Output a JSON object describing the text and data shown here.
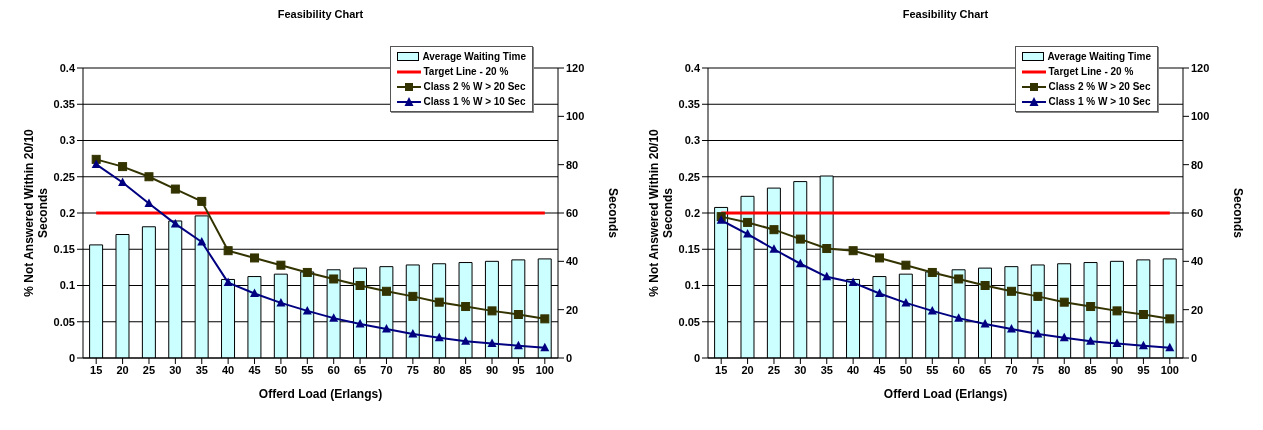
{
  "chart_data": [
    {
      "type": "bar",
      "title": "Feasibility Chart",
      "xlabel": "Offerd Load (Erlangs)",
      "ylabel": "% Not Answered Within 20/10 Seconds",
      "y2label": "Seconds",
      "categories": [
        "15",
        "20",
        "25",
        "30",
        "35",
        "40",
        "45",
        "50",
        "55",
        "60",
        "65",
        "70",
        "75",
        "80",
        "85",
        "90",
        "95",
        "100"
      ],
      "series": [
        {
          "name": "Average Waiting Time",
          "axis": "y2",
          "color": "#ccffff",
          "values": [
            46.8,
            51.1,
            54.3,
            56.7,
            58.8,
            32.5,
            33.7,
            34.7,
            35.6,
            36.5,
            37.2,
            37.8,
            38.5,
            39.0,
            39.5,
            40.0,
            40.6,
            41.0
          ]
        },
        {
          "name": "Target Line - 20 %",
          "type": "line",
          "color": "#ff0000",
          "marker": "none",
          "values": [
            0.2,
            0.2,
            0.2,
            0.2,
            0.2,
            0.2,
            0.2,
            0.2,
            0.2,
            0.2,
            0.2,
            0.2,
            0.2,
            0.2,
            0.2,
            0.2,
            0.2,
            0.2
          ]
        },
        {
          "name": "Class 2 % W > 20 Sec",
          "type": "line",
          "color": "#333300",
          "marker": "square",
          "values": [
            0.274,
            0.264,
            0.25,
            0.233,
            0.216,
            0.148,
            0.138,
            0.128,
            0.118,
            0.109,
            0.1,
            0.092,
            0.085,
            0.077,
            0.071,
            0.065,
            0.06,
            0.054
          ]
        },
        {
          "name": "Class 1 % W > 10 Sec",
          "type": "line",
          "color": "#000080",
          "marker": "triangle",
          "values": [
            0.267,
            0.242,
            0.213,
            0.185,
            0.16,
            0.104,
            0.089,
            0.076,
            0.065,
            0.055,
            0.047,
            0.04,
            0.033,
            0.028,
            0.023,
            0.02,
            0.017,
            0.014
          ]
        }
      ],
      "ylim": [
        0,
        0.4
      ],
      "yticks": [
        0,
        0.05,
        0.1,
        0.15,
        0.2,
        0.25,
        0.3,
        0.35,
        0.4
      ],
      "y2lim": [
        0,
        120
      ],
      "y2ticks": [
        0,
        20,
        40,
        60,
        80,
        100,
        120
      ],
      "grid": "y",
      "legend": "top right"
    },
    {
      "type": "bar",
      "title": "Feasibility Chart",
      "xlabel": "Offerd Load (Erlangs)",
      "ylabel": "% Not Answered Within 20/10 Seconds",
      "y2label": "Seconds",
      "categories": [
        "15",
        "20",
        "25",
        "30",
        "35",
        "40",
        "45",
        "50",
        "55",
        "60",
        "65",
        "70",
        "75",
        "80",
        "85",
        "90",
        "95",
        "100"
      ],
      "series": [
        {
          "name": "Average Waiting Time",
          "axis": "y2",
          "color": "#ccffff",
          "values": [
            62.3,
            66.9,
            70.3,
            73.0,
            75.3,
            32.5,
            33.7,
            34.7,
            35.6,
            36.5,
            37.2,
            37.8,
            38.5,
            39.0,
            39.5,
            40.0,
            40.6,
            41.0
          ]
        },
        {
          "name": "Target Line - 20 %",
          "type": "line",
          "color": "#ff0000",
          "marker": "none",
          "values": [
            0.2,
            0.2,
            0.2,
            0.2,
            0.2,
            0.2,
            0.2,
            0.2,
            0.2,
            0.2,
            0.2,
            0.2,
            0.2,
            0.2,
            0.2,
            0.2,
            0.2,
            0.2
          ]
        },
        {
          "name": "Class 2 % W > 20 Sec",
          "type": "line",
          "color": "#333300",
          "marker": "square",
          "values": [
            0.195,
            0.187,
            0.177,
            0.164,
            0.151,
            0.148,
            0.138,
            0.128,
            0.118,
            0.109,
            0.1,
            0.092,
            0.085,
            0.077,
            0.071,
            0.065,
            0.06,
            0.054
          ]
        },
        {
          "name": "Class 1 % W > 10 Sec",
          "type": "line",
          "color": "#000080",
          "marker": "triangle",
          "values": [
            0.19,
            0.171,
            0.15,
            0.13,
            0.112,
            0.104,
            0.089,
            0.076,
            0.065,
            0.055,
            0.047,
            0.04,
            0.033,
            0.028,
            0.023,
            0.02,
            0.017,
            0.014
          ]
        }
      ],
      "ylim": [
        0,
        0.4
      ],
      "yticks": [
        0,
        0.05,
        0.1,
        0.15,
        0.2,
        0.25,
        0.3,
        0.35,
        0.4
      ],
      "y2lim": [
        0,
        120
      ],
      "y2ticks": [
        0,
        20,
        40,
        60,
        80,
        100,
        120
      ],
      "grid": "y",
      "legend": "top right"
    }
  ]
}
